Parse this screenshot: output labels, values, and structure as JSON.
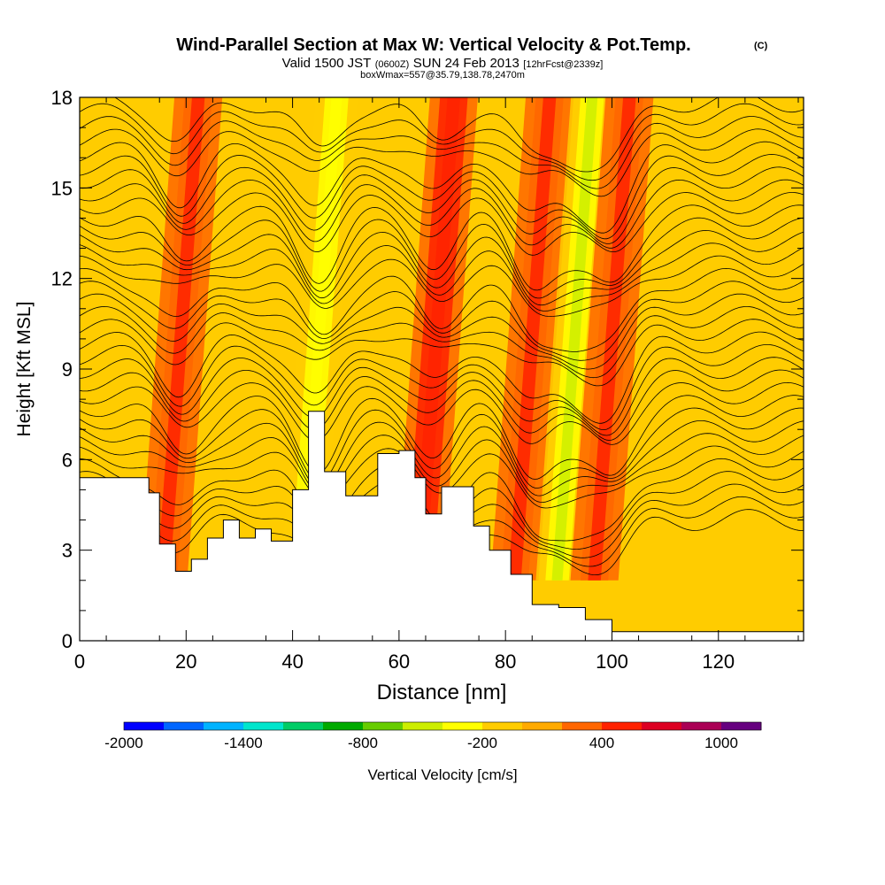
{
  "chart_data": {
    "type": "heatmap",
    "title": "Wind-Parallel Section at Max W: Vertical Velocity & Pot.Temp.",
    "title_mark": "(C)",
    "subtitle": {
      "part1": "Valid 1500 JST",
      "part2": "(0600Z)",
      "part3": "SUN 24 Feb 2013",
      "part4": "[12hrFcst@2339z]"
    },
    "box_note": "boxWmax=557@35.79,138.78,2470m",
    "xlabel": "Distance [nm]",
    "ylabel": "Height [Kft MSL]",
    "xlim": [
      0,
      136
    ],
    "ylim": [
      0,
      18
    ],
    "x_ticks": [
      "0",
      "20",
      "40",
      "60",
      "80",
      "100",
      "120"
    ],
    "y_ticks": [
      "0",
      "3",
      "6",
      "9",
      "12",
      "15",
      "18"
    ],
    "colorbar": {
      "label": "Vertical Velocity [cm/s]",
      "range": [
        -2000,
        1200
      ],
      "tick_labels": [
        "-2000",
        "-1400",
        "-800",
        "-200",
        "400",
        "1000"
      ],
      "colors": [
        "#0000ff",
        "#0066ff",
        "#00b3ff",
        "#00e6cc",
        "#00cc66",
        "#00aa00",
        "#66cc00",
        "#ccee00",
        "#ffff00",
        "#ffcc00",
        "#ffaa00",
        "#ff6600",
        "#ff2200",
        "#dd0022",
        "#aa0055",
        "#66007f"
      ]
    },
    "vertical_velocity_bands": [
      {
        "x": 19,
        "w": 200
      },
      {
        "x": 45,
        "w": -300
      },
      {
        "x": 67,
        "w": 280
      },
      {
        "x": 85,
        "w": 200
      },
      {
        "x": 93,
        "w": -400
      },
      {
        "x": 100,
        "w": 220
      }
    ],
    "terrain_kft": [
      {
        "x": 0,
        "h": 5.4
      },
      {
        "x": 8,
        "h": 5.4
      },
      {
        "x": 13,
        "h": 4.9
      },
      {
        "x": 15,
        "h": 3.2
      },
      {
        "x": 18,
        "h": 2.3
      },
      {
        "x": 21,
        "h": 2.7
      },
      {
        "x": 24,
        "h": 3.4
      },
      {
        "x": 27,
        "h": 4.0
      },
      {
        "x": 30,
        "h": 3.4
      },
      {
        "x": 33,
        "h": 3.7
      },
      {
        "x": 36,
        "h": 3.3
      },
      {
        "x": 40,
        "h": 5.0
      },
      {
        "x": 43,
        "h": 7.6
      },
      {
        "x": 46,
        "h": 5.6
      },
      {
        "x": 50,
        "h": 4.8
      },
      {
        "x": 53,
        "h": 4.8
      },
      {
        "x": 56,
        "h": 6.2
      },
      {
        "x": 60,
        "h": 6.3
      },
      {
        "x": 63,
        "h": 5.4
      },
      {
        "x": 65,
        "h": 4.2
      },
      {
        "x": 68,
        "h": 5.1
      },
      {
        "x": 71,
        "h": 5.1
      },
      {
        "x": 74,
        "h": 3.8
      },
      {
        "x": 77,
        "h": 3.0
      },
      {
        "x": 81,
        "h": 2.2
      },
      {
        "x": 85,
        "h": 1.2
      },
      {
        "x": 90,
        "h": 1.1
      },
      {
        "x": 95,
        "h": 0.7
      },
      {
        "x": 100,
        "h": 0.3
      },
      {
        "x": 136,
        "h": 0.3
      }
    ]
  }
}
